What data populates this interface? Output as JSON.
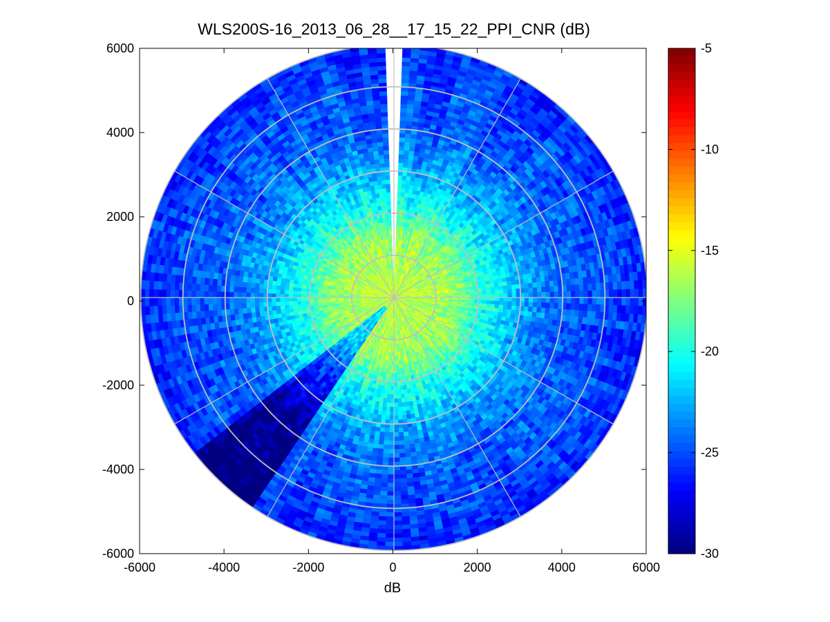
{
  "chart_data": {
    "type": "heatmap",
    "projection": "polar-ppi",
    "title": "WLS200S-16_2013_06_28__17_15_22_PPI_CNR (dB)",
    "xlabel": "dB",
    "ylabel": "",
    "xlim": [
      -6000,
      6000
    ],
    "ylim": [
      -6000,
      6000
    ],
    "xticks": [
      -6000,
      -4000,
      -2000,
      0,
      2000,
      4000,
      6000
    ],
    "yticks": [
      -6000,
      -4000,
      -2000,
      0,
      2000,
      4000,
      6000
    ],
    "xtick_labels": [
      "-6000",
      "-4000",
      "-2000",
      "0",
      "2000",
      "4000",
      "6000"
    ],
    "ytick_labels": [
      "6000",
      "4000",
      "2000",
      "0",
      "-2000",
      "-4000",
      "-6000"
    ],
    "max_range": 6000,
    "range_rings": [
      1000,
      2000,
      3000,
      4000,
      5000,
      6000
    ],
    "spoke_angles_deg": [
      0,
      30,
      60,
      90,
      120,
      150,
      180,
      210,
      240,
      270,
      300,
      330
    ],
    "missing_sector_deg": [
      -2,
      2
    ],
    "low_value_sector_deg": [
      -147,
      -128
    ],
    "colorbar": {
      "min": -30,
      "max": -5,
      "ticks": [
        -5,
        -10,
        -15,
        -20,
        -25,
        -30
      ],
      "tick_labels": [
        "-5",
        "-10",
        "-15",
        "-20",
        "-25",
        "-30"
      ],
      "colormap": "jet"
    },
    "cnr_profile": {
      "range_m": [
        0,
        1000,
        1500,
        2000,
        2500,
        3000,
        3500,
        4000,
        5000,
        6000
      ],
      "cnr_db": [
        -16,
        -16.5,
        -17,
        -19.5,
        -21,
        -22.5,
        -23.5,
        -24.5,
        -25,
        -26
      ]
    },
    "colors": {
      "grid": "#c0c0c0",
      "missing": "#ffffff"
    }
  }
}
